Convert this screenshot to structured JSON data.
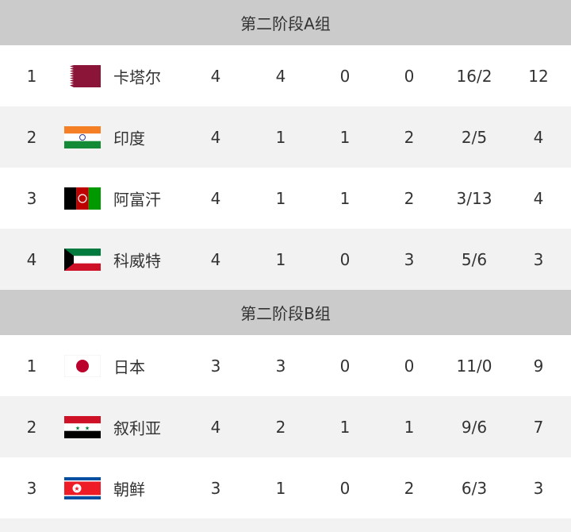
{
  "groups": [
    {
      "title": "第二阶段A组",
      "rows": [
        {
          "rank": "1",
          "flag": "qatar-flag",
          "team": "卡塔尔",
          "played": "4",
          "won": "4",
          "drawn": "0",
          "lost": "0",
          "goals": "16/2",
          "points": "12"
        },
        {
          "rank": "2",
          "flag": "india-flag",
          "team": "印度",
          "played": "4",
          "won": "1",
          "drawn": "1",
          "lost": "2",
          "goals": "2/5",
          "points": "4"
        },
        {
          "rank": "3",
          "flag": "afghanistan-flag",
          "team": "阿富汗",
          "played": "4",
          "won": "1",
          "drawn": "1",
          "lost": "2",
          "goals": "3/13",
          "points": "4"
        },
        {
          "rank": "4",
          "flag": "kuwait-flag",
          "team": "科威特",
          "played": "4",
          "won": "1",
          "drawn": "0",
          "lost": "3",
          "goals": "5/6",
          "points": "3"
        }
      ]
    },
    {
      "title": "第二阶段B组",
      "rows": [
        {
          "rank": "1",
          "flag": "japan-flag",
          "team": "日本",
          "played": "3",
          "won": "3",
          "drawn": "0",
          "lost": "0",
          "goals": "11/0",
          "points": "9"
        },
        {
          "rank": "2",
          "flag": "syria-flag",
          "team": "叙利亚",
          "played": "4",
          "won": "2",
          "drawn": "1",
          "lost": "1",
          "goals": "9/6",
          "points": "7"
        },
        {
          "rank": "3",
          "flag": "north-korea-flag",
          "team": "朝鲜",
          "played": "3",
          "won": "1",
          "drawn": "0",
          "lost": "2",
          "goals": "6/3",
          "points": "3"
        }
      ]
    }
  ]
}
